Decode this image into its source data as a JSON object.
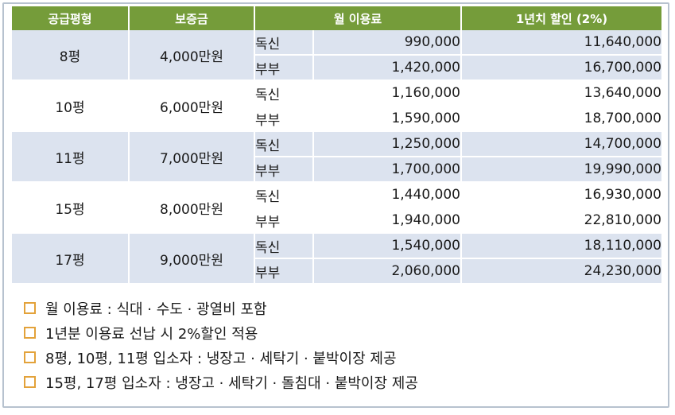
{
  "table": {
    "headers": [
      "공급평형",
      "보증금",
      "월 이용료",
      "1년치 할인 (2%)"
    ],
    "groups": [
      {
        "size": "8평",
        "deposit": "4,000만원",
        "rows": [
          {
            "type": "독신",
            "monthly": "990,000",
            "annual": "11,640,000"
          },
          {
            "type": "부부",
            "monthly": "1,420,000",
            "annual": "16,700,000"
          }
        ]
      },
      {
        "size": "10평",
        "deposit": "6,000만원",
        "rows": [
          {
            "type": "독신",
            "monthly": "1,160,000",
            "annual": "13,640,000"
          },
          {
            "type": "부부",
            "monthly": "1,590,000",
            "annual": "18,700,000"
          }
        ]
      },
      {
        "size": "11평",
        "deposit": "7,000만원",
        "rows": [
          {
            "type": "독신",
            "monthly": "1,250,000",
            "annual": "14,700,000"
          },
          {
            "type": "부부",
            "monthly": "1,700,000",
            "annual": "19,990,000"
          }
        ]
      },
      {
        "size": "15평",
        "deposit": "8,000만원",
        "rows": [
          {
            "type": "독신",
            "monthly": "1,440,000",
            "annual": "16,930,000"
          },
          {
            "type": "부부",
            "monthly": "1,940,000",
            "annual": "22,810,000"
          }
        ]
      },
      {
        "size": "17평",
        "deposit": "9,000만원",
        "rows": [
          {
            "type": "독신",
            "monthly": "1,540,000",
            "annual": "18,110,000"
          },
          {
            "type": "부부",
            "monthly": "2,060,000",
            "annual": "24,230,000"
          }
        ]
      }
    ]
  },
  "notes": [
    "월 이용료 : 식대 · 수도 · 광열비 포함",
    "1년분 이용료 선납 시 2%할인 적용",
    "8평, 10평, 11평 입소자 : 냉장고 · 세탁기 · 붙박이장 제공",
    "15평, 17평 입소자 : 냉장고 · 세탁기 · 돌침대 · 붙박이장 제공"
  ],
  "colors": {
    "header_bg": "#759c3a",
    "shade_bg": "#dce3ef",
    "bullet_border": "#e3a23a",
    "frame_border": "#b7c2cf"
  }
}
